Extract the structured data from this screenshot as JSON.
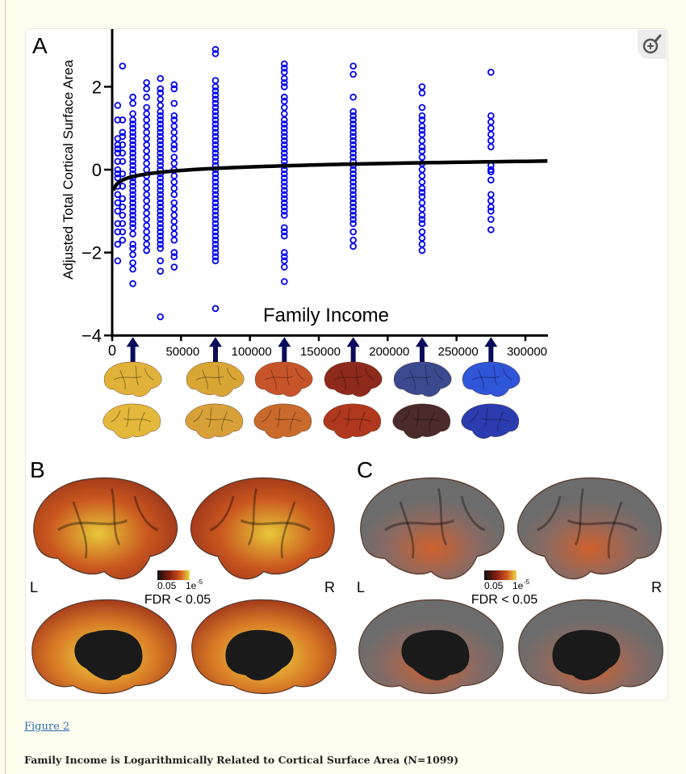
{
  "figure_link": "Figure 2",
  "caption": "Family Income is Logarithmically Related to Cortical Surface Area (N=1099)",
  "zoom_button": {
    "icon": "magnify-plus-icon"
  },
  "panel_labels": {
    "a": "A",
    "b": "B",
    "c": "C"
  },
  "colors": {
    "points": "#0000ee",
    "fit": "#000000",
    "arrows": "#0b0b5c"
  },
  "chart_data": {
    "type": "scatter",
    "title": "",
    "xlabel": "Family Income",
    "ylabel": "Adjusted Total Cortical Surface Area",
    "xlim": [
      0,
      310000
    ],
    "ylim": [
      -4,
      3.4
    ],
    "xticks": [
      0,
      50000,
      100000,
      150000,
      200000,
      250000,
      300000
    ],
    "xtick_labels": [
      "0",
      "50000",
      "100000",
      "150000",
      "200000",
      "250000",
      "300000"
    ],
    "yticks": [
      -4,
      -2,
      0,
      2
    ],
    "ytick_labels": [
      "−4",
      "−2",
      "0",
      "2"
    ],
    "grid": false,
    "fit": {
      "type": "logarithmic",
      "a": -1.35,
      "b": 0.123,
      "equation": "y = a + b·ln(x)"
    },
    "arrow_incomes": [
      15000,
      75000,
      125000,
      175000,
      225000,
      275000
    ],
    "columns": [
      {
        "x": 4000,
        "y": [
          1.55,
          1.2,
          0.75,
          0.6,
          0.5,
          0.4,
          0.2,
          0,
          -0.1,
          -0.2,
          -0.4,
          -0.6,
          -0.8,
          -1.0,
          -1.3,
          -1.5,
          -1.8,
          -2.2
        ]
      },
      {
        "x": 7500,
        "y": [
          2.5,
          1.2,
          0.9,
          0.8,
          0.6,
          0.4,
          0.2,
          -0.1,
          -0.4,
          -0.7,
          -0.9,
          -1.1,
          -1.3,
          -1.5,
          -1.7
        ]
      },
      {
        "x": 15000,
        "y": [
          1.75,
          1.6,
          1.35,
          1.2,
          1.1,
          1.0,
          0.9,
          0.8,
          0.7,
          0.6,
          0.5,
          0.4,
          0.3,
          0.2,
          0.1,
          0,
          -0.1,
          -0.2,
          -0.3,
          -0.4,
          -0.5,
          -0.6,
          -0.7,
          -0.8,
          -0.9,
          -1.0,
          -1.1,
          -1.2,
          -1.3,
          -1.4,
          -1.55,
          -1.8,
          -1.9,
          -2.05,
          -2.25,
          -2.4,
          -2.75
        ]
      },
      {
        "x": 25000,
        "y": [
          2.1,
          1.95,
          1.75,
          1.5,
          1.35,
          1.2,
          1.05,
          0.9,
          0.75,
          0.6,
          0.45,
          0.3,
          0.15,
          0,
          -0.15,
          -0.3,
          -0.45,
          -0.6,
          -0.75,
          -0.9,
          -1.05,
          -1.2,
          -1.35,
          -1.5,
          -1.65,
          -1.8,
          -1.95
        ]
      },
      {
        "x": 35000,
        "y": [
          2.2,
          1.95,
          1.85,
          1.7,
          1.55,
          1.4,
          1.3,
          1.2,
          1.1,
          1.0,
          0.9,
          0.8,
          0.7,
          0.6,
          0.5,
          0.4,
          0.3,
          0.2,
          0.1,
          0,
          -0.1,
          -0.2,
          -0.3,
          -0.4,
          -0.5,
          -0.6,
          -0.7,
          -0.8,
          -0.9,
          -1.0,
          -1.1,
          -1.2,
          -1.3,
          -1.4,
          -1.5,
          -1.6,
          -1.7,
          -1.8,
          -1.9,
          -2.2,
          -2.45,
          -3.55
        ]
      },
      {
        "x": 45000,
        "y": [
          2.05,
          1.95,
          1.6,
          1.3,
          1.2,
          1.05,
          0.9,
          0.75,
          0.6,
          0.5,
          0.3,
          0.15,
          0,
          -0.15,
          -0.3,
          -0.45,
          -0.6,
          -0.8,
          -0.95,
          -1.1,
          -1.25,
          -1.4,
          -1.55,
          -1.7,
          -2.0,
          -2.1,
          -2.35
        ]
      },
      {
        "x": 75000,
        "y": [
          2.9,
          2.8,
          2.15,
          2.0,
          1.9,
          1.8,
          1.7,
          1.6,
          1.5,
          1.4,
          1.3,
          1.2,
          1.1,
          1.0,
          0.9,
          0.8,
          0.7,
          0.6,
          0.5,
          0.4,
          0.3,
          0.2,
          0.1,
          0,
          -0.1,
          -0.2,
          -0.3,
          -0.4,
          -0.5,
          -0.6,
          -0.7,
          -0.8,
          -0.9,
          -1.0,
          -1.1,
          -1.2,
          -1.3,
          -1.4,
          -1.5,
          -1.6,
          -1.7,
          -1.8,
          -1.9,
          -2.0,
          -2.1,
          -2.2,
          -3.35
        ]
      },
      {
        "x": 125000,
        "y": [
          2.55,
          2.45,
          2.35,
          2.2,
          2.1,
          2.0,
          1.75,
          1.65,
          1.5,
          1.35,
          1.2,
          1.1,
          1.0,
          0.9,
          0.8,
          0.7,
          0.6,
          0.5,
          0.4,
          0.3,
          0.2,
          0.1,
          0,
          -0.1,
          -0.2,
          -0.3,
          -0.4,
          -0.5,
          -0.6,
          -0.7,
          -0.8,
          -0.9,
          -1.0,
          -1.1,
          -1.4,
          -1.5,
          -1.6,
          -2.0,
          -2.1,
          -2.2,
          -2.35,
          -2.7
        ]
      },
      {
        "x": 175000,
        "y": [
          2.5,
          2.3,
          1.75,
          1.4,
          1.3,
          1.2,
          1.1,
          1.0,
          0.9,
          0.8,
          0.7,
          0.6,
          0.5,
          0.4,
          0.3,
          0.2,
          0.1,
          0,
          -0.1,
          -0.2,
          -0.3,
          -0.4,
          -0.5,
          -0.6,
          -0.7,
          -0.8,
          -0.9,
          -1.0,
          -1.1,
          -1.2,
          -1.3,
          -1.5,
          -1.7,
          -1.85
        ]
      },
      {
        "x": 225000,
        "y": [
          2.0,
          1.85,
          1.5,
          1.3,
          1.2,
          1.05,
          0.95,
          0.85,
          0.7,
          0.55,
          0.45,
          0.3,
          0.15,
          0,
          -0.15,
          -0.3,
          -0.45,
          -0.55,
          -0.65,
          -0.8,
          -0.95,
          -1.1,
          -1.2,
          -1.3,
          -1.5,
          -1.65,
          -1.8,
          -1.95
        ]
      },
      {
        "x": 275000,
        "y": [
          2.35,
          1.3,
          1.15,
          1.0,
          0.85,
          0.7,
          0.55,
          0.1,
          0.0,
          -0.05,
          -0.25,
          -0.6,
          -0.75,
          -0.9,
          -1.0,
          -1.2,
          -1.45
        ]
      }
    ]
  },
  "brain_rows": {
    "top": [
      "#e0b23a",
      "#d9a636",
      "#c8552a",
      "#8e2a1c",
      "#3b4a8f",
      "#2f55d8"
    ],
    "bottom": [
      "#e3b83b",
      "#d8a038",
      "#c96a2c",
      "#b0381f",
      "#4a2a2a",
      "#2a3cb0"
    ]
  },
  "panel_b": {
    "left_label": "L",
    "right_label": "R",
    "legend_min": "0.05",
    "legend_max": "1e",
    "legend_max_exp": "-5",
    "legend_title": "FDR < 0.05"
  },
  "panel_c": {
    "left_label": "L",
    "right_label": "R",
    "legend_min": "0.05",
    "legend_max": "1e",
    "legend_max_exp": "-5",
    "legend_title": "FDR < 0.05"
  }
}
